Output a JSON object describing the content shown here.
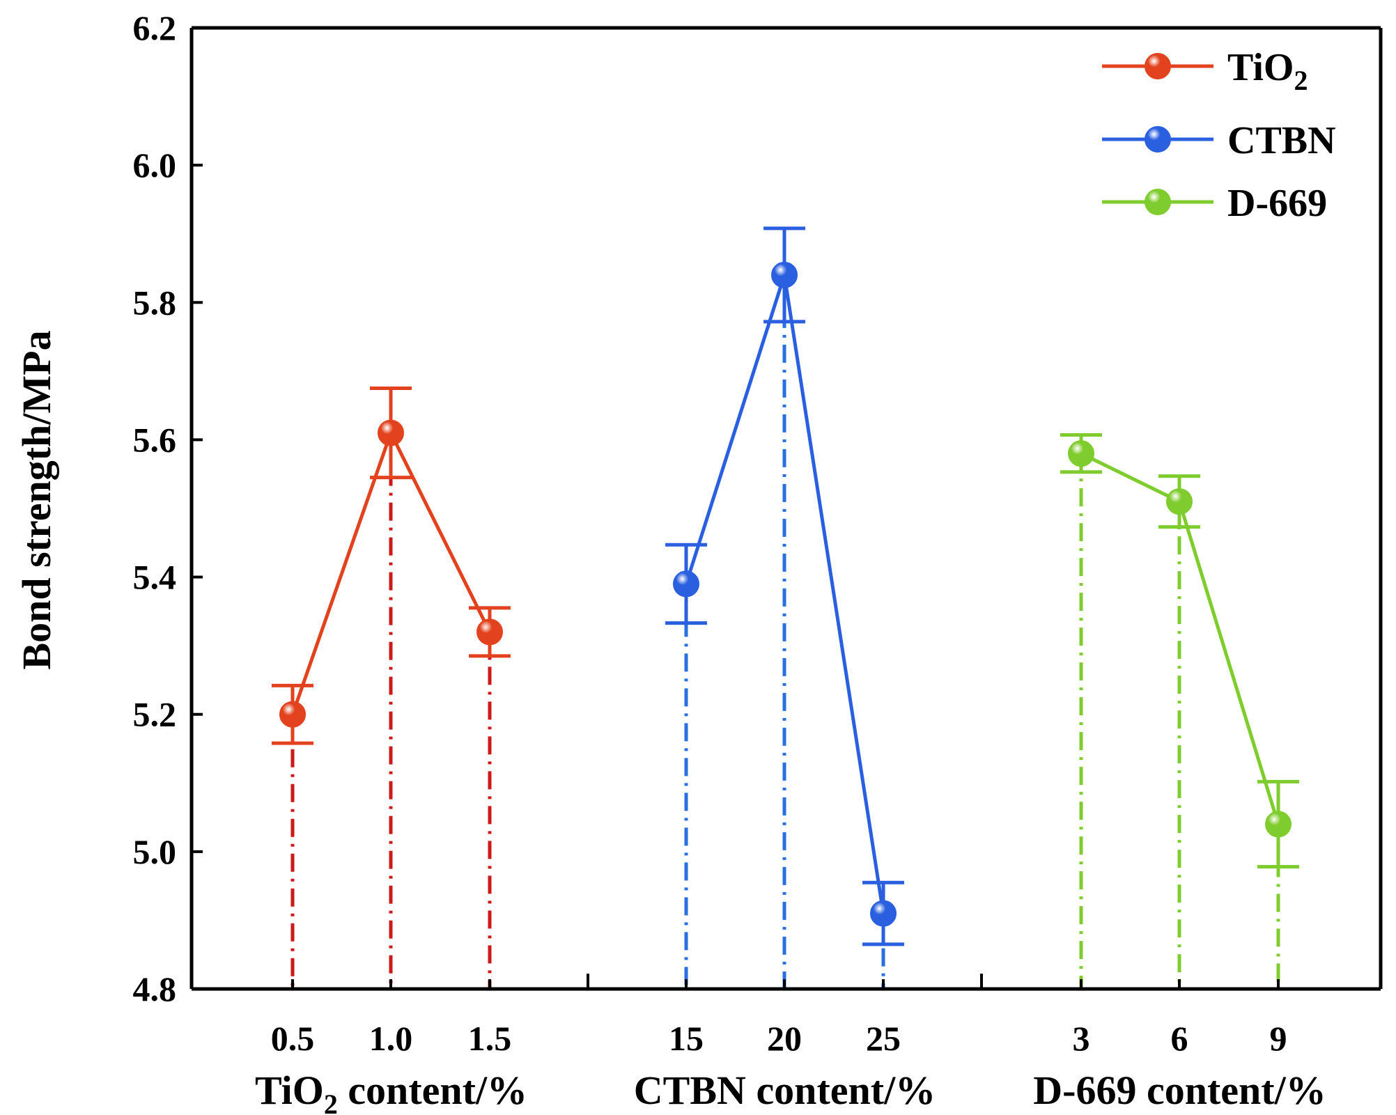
{
  "chart_data": {
    "type": "line",
    "ylabel": "Bond strength/MPa",
    "ylim": [
      4.8,
      6.2
    ],
    "yticks": [
      "4.8",
      "5.0",
      "5.2",
      "5.4",
      "5.6",
      "5.8",
      "6.0",
      "6.2"
    ],
    "legend_position": "top-right",
    "series": [
      {
        "name": "TiO2",
        "legend_main": "TiO",
        "legend_sub": "2",
        "color": "#e2421d",
        "drop_color": "#cc1a1a",
        "x_labels": [
          "0.5",
          "1.0",
          "1.5"
        ],
        "axis_label_main": "TiO",
        "axis_label_sub": "2",
        "axis_label_rest": " content/%",
        "values": [
          5.2,
          5.61,
          5.32
        ],
        "errors": [
          0.042,
          0.065,
          0.035
        ]
      },
      {
        "name": "CTBN",
        "legend_main": "CTBN",
        "legend_sub": "",
        "color": "#2a5fe0",
        "drop_color": "#2a6fe0",
        "x_labels": [
          "15",
          "20",
          "25"
        ],
        "axis_label_main": "CTBN content/%",
        "axis_label_sub": "",
        "axis_label_rest": "",
        "values": [
          5.39,
          5.84,
          4.91
        ],
        "errors": [
          0.057,
          0.068,
          0.045
        ]
      },
      {
        "name": "D-669",
        "legend_main": "D-669",
        "legend_sub": "",
        "color": "#7fcc2e",
        "drop_color": "#7fcc2e",
        "x_labels": [
          "3",
          "6",
          "9"
        ],
        "axis_label_main": "D-669 content/%",
        "axis_label_sub": "",
        "axis_label_rest": "",
        "values": [
          5.58,
          5.51,
          5.04
        ],
        "errors": [
          0.027,
          0.037,
          0.062
        ]
      }
    ]
  }
}
